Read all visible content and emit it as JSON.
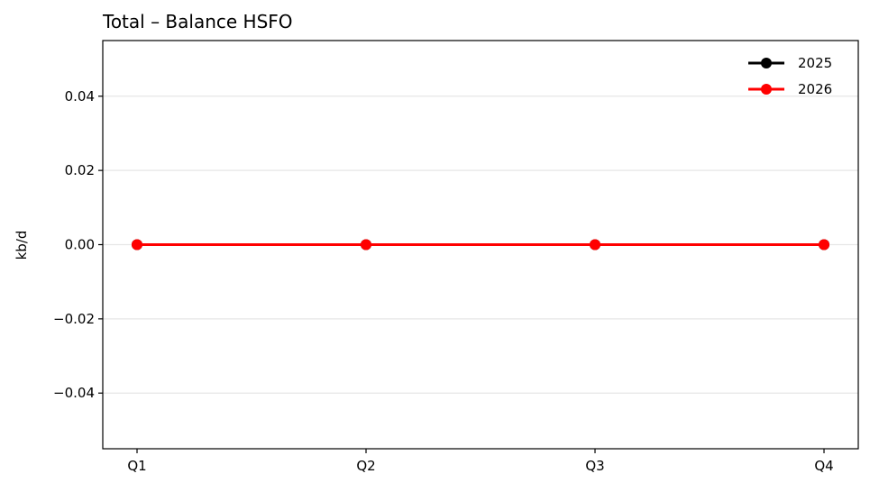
{
  "chart_data": {
    "type": "line",
    "title": "Total – Balance HSFO",
    "xlabel": "",
    "ylabel": "kb/d",
    "categories": [
      "Q1",
      "Q2",
      "Q3",
      "Q4"
    ],
    "series": [
      {
        "name": "2025",
        "values": [
          0,
          0,
          0,
          0
        ],
        "color": "#000000"
      },
      {
        "name": "2026",
        "values": [
          0,
          0,
          0,
          0
        ],
        "color": "#ff0000"
      }
    ],
    "ylim": [
      -0.055,
      0.055
    ],
    "yticks": [
      -0.04,
      -0.02,
      0.0,
      0.02,
      0.04
    ],
    "ytick_labels": [
      "−0.04",
      "−0.02",
      "0.00",
      "0.02",
      "0.04"
    ],
    "grid": "y",
    "legend": "top-right",
    "gridline_color": "#e6e6e6"
  }
}
